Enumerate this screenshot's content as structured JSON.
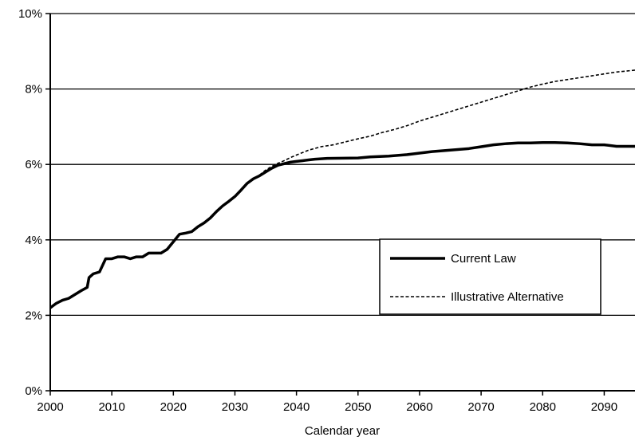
{
  "chart_data": {
    "type": "line",
    "title": "",
    "xlabel": "Calendar year",
    "ylabel": "",
    "xlim": [
      2000,
      2095
    ],
    "ylim": [
      0,
      10
    ],
    "x_ticks": [
      2000,
      2010,
      2020,
      2030,
      2040,
      2050,
      2060,
      2070,
      2080,
      2090
    ],
    "y_ticks": [
      0,
      2,
      4,
      6,
      8,
      10
    ],
    "y_tick_labels": [
      "0%",
      "2%",
      "4%",
      "6%",
      "8%",
      "10%"
    ],
    "grid": "horizontal",
    "legend_position": "center-right",
    "series": [
      {
        "name": "Current Law",
        "style": "solid",
        "color": "#000000",
        "x": [
          2000,
          2001,
          2002,
          2003,
          2004,
          2005,
          2006,
          2006.3,
          2007,
          2008,
          2009,
          2010,
          2011,
          2012,
          2013,
          2014,
          2015,
          2016,
          2017,
          2018,
          2019,
          2020,
          2021,
          2022,
          2023,
          2024,
          2025,
          2026,
          2027,
          2028,
          2029,
          2030,
          2031,
          2032,
          2033,
          2034,
          2035,
          2036,
          2037,
          2038,
          2039,
          2040,
          2041,
          2042,
          2043,
          2045,
          2050,
          2052,
          2055,
          2058,
          2060,
          2062,
          2065,
          2068,
          2070,
          2072,
          2074,
          2076,
          2078,
          2080,
          2082,
          2084,
          2086,
          2088,
          2090,
          2092,
          2095
        ],
        "values": [
          2.2,
          2.32,
          2.4,
          2.45,
          2.55,
          2.65,
          2.74,
          3.0,
          3.1,
          3.15,
          3.5,
          3.5,
          3.55,
          3.55,
          3.5,
          3.55,
          3.55,
          3.65,
          3.65,
          3.65,
          3.75,
          3.95,
          4.15,
          4.18,
          4.22,
          4.35,
          4.45,
          4.58,
          4.75,
          4.9,
          5.02,
          5.15,
          5.32,
          5.5,
          5.62,
          5.7,
          5.8,
          5.9,
          5.98,
          6.02,
          6.06,
          6.08,
          6.1,
          6.12,
          6.14,
          6.16,
          6.17,
          6.2,
          6.22,
          6.26,
          6.3,
          6.34,
          6.38,
          6.42,
          6.47,
          6.52,
          6.55,
          6.57,
          6.57,
          6.58,
          6.58,
          6.57,
          6.55,
          6.52,
          6.52,
          6.48,
          6.48
        ]
      },
      {
        "name": "Illustrative Alternative",
        "style": "dashed",
        "color": "#000000",
        "x": [
          2034,
          2035,
          2036,
          2037,
          2038,
          2039,
          2040,
          2042,
          2044,
          2046,
          2048,
          2050,
          2052,
          2054,
          2056,
          2058,
          2060,
          2062,
          2064,
          2066,
          2068,
          2070,
          2072,
          2074,
          2076,
          2078,
          2080,
          2082,
          2084,
          2086,
          2088,
          2090,
          2092,
          2095
        ],
        "values": [
          5.72,
          5.85,
          5.95,
          6.03,
          6.1,
          6.18,
          6.25,
          6.38,
          6.47,
          6.52,
          6.6,
          6.68,
          6.75,
          6.85,
          6.93,
          7.03,
          7.15,
          7.25,
          7.35,
          7.45,
          7.55,
          7.65,
          7.75,
          7.85,
          7.95,
          8.05,
          8.13,
          8.2,
          8.25,
          8.3,
          8.35,
          8.4,
          8.45,
          8.5
        ]
      }
    ]
  }
}
